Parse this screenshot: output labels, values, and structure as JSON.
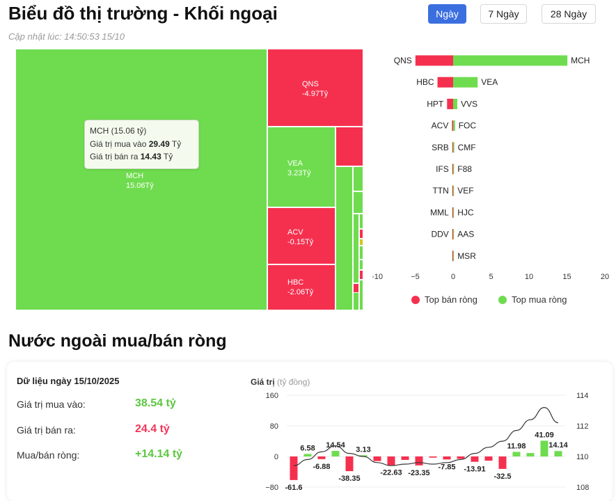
{
  "header": {
    "title": "Biểu đồ thị trường - Khối ngoại",
    "updated": "Cập nhật lúc: 14:50:53 15/10",
    "tabs": [
      {
        "label": "Ngày",
        "active": true
      },
      {
        "label": "7 Ngày",
        "active": false
      },
      {
        "label": "28 Ngày",
        "active": false
      }
    ]
  },
  "treemap": {
    "cells": [
      {
        "code": "MCH",
        "value": "15.06Tỷ",
        "color": "green"
      },
      {
        "code": "QNS",
        "value": "-4.97Tỷ",
        "color": "red"
      },
      {
        "code": "VEA",
        "value": "3.23Tỷ",
        "color": "green"
      },
      {
        "code": "ACV",
        "value": "-0.15Tỷ",
        "color": "red"
      },
      {
        "code": "HBC",
        "value": "-2.06Tỷ",
        "color": "red"
      }
    ],
    "tooltip": {
      "title": "MCH (15.06 tỷ)",
      "buy_label": "Giá trị mua vào",
      "buy_value": "29.49",
      "sell_label": "Giá trị bán ra",
      "sell_value": "14.43",
      "unit": "Tỷ"
    }
  },
  "top_chart": {
    "pairs": [
      {
        "sell_code": "QNS",
        "sell_value": -4.97,
        "buy_code": "MCH",
        "buy_value": 15.06
      },
      {
        "sell_code": "HBC",
        "sell_value": -2.06,
        "buy_code": "VEA",
        "buy_value": 3.23
      },
      {
        "sell_code": "HPT",
        "sell_value": -0.8,
        "buy_code": "VVS",
        "buy_value": 0.55
      },
      {
        "sell_code": "ACV",
        "sell_value": -0.15,
        "buy_code": "FOC",
        "buy_value": 0.25
      },
      {
        "sell_code": "SRB",
        "sell_value": -0.05,
        "buy_code": "CMF",
        "buy_value": 0.15
      },
      {
        "sell_code": "IFS",
        "sell_value": -0.03,
        "buy_code": "F88",
        "buy_value": 0.12
      },
      {
        "sell_code": "TTN",
        "sell_value": -0.02,
        "buy_code": "VEF",
        "buy_value": 0.1
      },
      {
        "sell_code": "MML",
        "sell_value": -0.02,
        "buy_code": "HJC",
        "buy_value": 0.08
      },
      {
        "sell_code": "DDV",
        "sell_value": -0.01,
        "buy_code": "AAS",
        "buy_value": 0.05
      },
      {
        "sell_code": "",
        "sell_value": -0.01,
        "buy_code": "MSR",
        "buy_value": 0.03
      }
    ],
    "x_ticks": [
      "-10",
      "−5",
      "0",
      "5",
      "10",
      "15",
      "20"
    ],
    "legend_sell": "Top bán ròng",
    "legend_buy": "Top mua ròng",
    "colors": {
      "sell": "#f5304f",
      "buy": "#6fdc4f"
    }
  },
  "section": {
    "title": "Nước ngoài mua/bán ròng",
    "summary_heading": "Dữ liệu ngày 15/10/2025",
    "rows": [
      {
        "label": "Giá trị mua vào:",
        "value": "38.54 tỷ",
        "color": "green"
      },
      {
        "label": "Giá trị bán ra:",
        "value": "24.4 tỷ",
        "color": "red"
      },
      {
        "label": "Mua/bán ròng:",
        "value": "+14.14 tỷ",
        "color": "green"
      }
    ]
  },
  "chart_data": {
    "type": "bar",
    "ylabel": "Giá trị",
    "yunit": "(tỷ đồng)",
    "y_ticks": [
      "160",
      "80",
      "0",
      "−80"
    ],
    "y2_ticks": [
      "114",
      "112",
      "110",
      "108"
    ],
    "ylim": [
      -80,
      160
    ],
    "y2lim": [
      108,
      114
    ],
    "values": [
      -61.6,
      6.58,
      -6.88,
      14.54,
      -38.35,
      3.13,
      -12.0,
      -22.63,
      -9.0,
      -23.35,
      -3.0,
      -7.85,
      -6.0,
      -13.91,
      -11.0,
      -32.5,
      11.98,
      9.0,
      41.09,
      14.14
    ],
    "labels": [
      "-61.6",
      "6.58",
      "-6.88",
      "14.54",
      "-38.35",
      "3.13",
      "",
      "-22.63",
      "",
      "-23.35",
      "",
      "-7.85",
      "",
      "-13.91",
      "",
      "-32.5",
      "11.98",
      "",
      "41.09",
      "14.14"
    ],
    "line_values": [
      109.4,
      109.8,
      110.3,
      110.7,
      110.2,
      110.0,
      109.6,
      109.4,
      109.5,
      109.6,
      109.5,
      109.6,
      109.8,
      110.2,
      110.6,
      111.0,
      111.7,
      112.4,
      113.2,
      112.2
    ]
  }
}
